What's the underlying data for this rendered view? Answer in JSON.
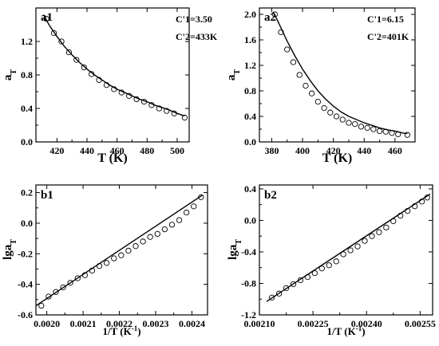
{
  "chart_data": [
    {
      "type": "scatter",
      "panel_label": "a1",
      "annotations": [
        "C'1=3.50",
        "C'2=433K"
      ],
      "xlabel": "T (K)",
      "ylabel": "aT",
      "ylabel_main": "a",
      "ylabel_sub": "T",
      "xlim": [
        406,
        508
      ],
      "ylim": [
        0.0,
        1.6
      ],
      "xticks": [
        420,
        440,
        460,
        480,
        500
      ],
      "yticks": [
        0.0,
        0.4,
        0.8,
        1.2
      ],
      "series": [
        {
          "kind": "points",
          "x": [
            413,
            418,
            423,
            428,
            433,
            438,
            443,
            448,
            453,
            458,
            463,
            468,
            473,
            478,
            483,
            488,
            493,
            498,
            505
          ],
          "y": [
            1.47,
            1.3,
            1.2,
            1.07,
            0.98,
            0.89,
            0.81,
            0.74,
            0.68,
            0.63,
            0.59,
            0.55,
            0.51,
            0.48,
            0.44,
            0.4,
            0.37,
            0.34,
            0.29
          ]
        },
        {
          "kind": "fit",
          "x": [
            411,
            415,
            420,
            425,
            430,
            435,
            440,
            445,
            450,
            455,
            460,
            465,
            470,
            475,
            480,
            485,
            490,
            495,
            500,
            505
          ],
          "y": [
            1.52,
            1.39,
            1.26,
            1.14,
            1.04,
            0.95,
            0.87,
            0.8,
            0.74,
            0.68,
            0.63,
            0.59,
            0.55,
            0.51,
            0.48,
            0.44,
            0.41,
            0.38,
            0.34,
            0.31
          ]
        }
      ]
    },
    {
      "type": "scatter",
      "panel_label": "a2",
      "annotations": [
        "C'1=6.15",
        "C'2=401K"
      ],
      "xlabel": "T (K)",
      "ylabel": "aT",
      "ylabel_main": "a",
      "ylabel_sub": "T",
      "xlim": [
        372,
        473
      ],
      "ylim": [
        0.0,
        2.1
      ],
      "xticks": [
        380,
        400,
        420,
        440,
        460
      ],
      "yticks": [
        0.0,
        0.4,
        0.8,
        1.2,
        1.6,
        2.0
      ],
      "series": [
        {
          "kind": "points",
          "x": [
            382,
            386,
            390,
            394,
            398,
            402,
            406,
            410,
            414,
            418,
            422,
            426,
            430,
            434,
            438,
            442,
            446,
            450,
            454,
            458,
            462,
            468
          ],
          "y": [
            2.0,
            1.72,
            1.45,
            1.25,
            1.05,
            0.88,
            0.76,
            0.63,
            0.53,
            0.46,
            0.4,
            0.35,
            0.3,
            0.28,
            0.24,
            0.22,
            0.2,
            0.17,
            0.16,
            0.14,
            0.12,
            0.11
          ]
        },
        {
          "kind": "fit",
          "x": [
            381,
            385,
            390,
            395,
            400,
            405,
            410,
            415,
            420,
            425,
            430,
            435,
            440,
            445,
            450,
            455,
            460,
            465,
            468
          ],
          "y": [
            2.04,
            1.84,
            1.58,
            1.35,
            1.14,
            0.96,
            0.8,
            0.67,
            0.56,
            0.47,
            0.4,
            0.35,
            0.3,
            0.26,
            0.22,
            0.19,
            0.17,
            0.14,
            0.13
          ]
        }
      ]
    },
    {
      "type": "scatter",
      "panel_label": "b1",
      "xlabel": "1/T (K-1)",
      "xlabel_main": "1/T (K",
      "xlabel_sup": "-1",
      "xlabel_end": ")",
      "ylabel": "lgaT",
      "ylabel_main": "lga",
      "ylabel_sub": "T",
      "xlim": [
        0.00197,
        0.002443
      ],
      "ylim": [
        -0.6,
        0.25
      ],
      "xticks": [
        0.002,
        0.0021,
        0.0022,
        0.0023,
        0.0024
      ],
      "xticklabels": [
        "0.0020",
        "0.0021",
        "0.0022",
        "0.0023",
        "0.0024"
      ],
      "yticks": [
        -0.6,
        -0.4,
        -0.2,
        0.0,
        0.2
      ],
      "yticklabels": [
        "-0.6",
        "-0.4",
        "-0.2",
        "0.0",
        "0.2"
      ],
      "series": [
        {
          "kind": "points",
          "x": [
            0.001985,
            0.002005,
            0.002025,
            0.002045,
            0.002065,
            0.002085,
            0.002105,
            0.002125,
            0.002145,
            0.002165,
            0.002185,
            0.002205,
            0.002225,
            0.002245,
            0.002265,
            0.002285,
            0.002305,
            0.002325,
            0.002345,
            0.002365,
            0.002385,
            0.002405,
            0.002425
          ],
          "y": [
            -0.54,
            -0.48,
            -0.45,
            -0.42,
            -0.39,
            -0.36,
            -0.34,
            -0.31,
            -0.28,
            -0.26,
            -0.23,
            -0.21,
            -0.18,
            -0.15,
            -0.12,
            -0.09,
            -0.07,
            -0.04,
            -0.01,
            0.02,
            0.07,
            0.11,
            0.17
          ]
        },
        {
          "kind": "fit",
          "x": [
            0.00197,
            0.00243
          ],
          "y": [
            -0.54,
            0.185
          ]
        }
      ]
    },
    {
      "type": "scatter",
      "panel_label": "b2",
      "xlabel": "1/T (K-1)",
      "xlabel_main": "1/T (K",
      "xlabel_sup": "-1",
      "xlabel_end": ")",
      "ylabel": "lgaT",
      "ylabel_main": "lga",
      "ylabel_sub": "T",
      "xlim": [
        0.0021,
        0.002585
      ],
      "ylim": [
        -1.2,
        0.45
      ],
      "xticks": [
        0.0021,
        0.00225,
        0.0024,
        0.00255
      ],
      "xticklabels": [
        "0.00210",
        "0.00225",
        "0.00240",
        "0.00255"
      ],
      "yticks": [
        -1.2,
        -0.8,
        -0.4,
        0.0,
        0.4
      ],
      "yticklabels": [
        "-1.2",
        "-0.8",
        "-0.4",
        "0.0",
        "0.4"
      ],
      "series": [
        {
          "kind": "points",
          "x": [
            0.002135,
            0.002155,
            0.002175,
            0.002195,
            0.002215,
            0.002235,
            0.002255,
            0.002275,
            0.002295,
            0.002315,
            0.002335,
            0.002355,
            0.002375,
            0.002395,
            0.002415,
            0.002435,
            0.002455,
            0.002475,
            0.002495,
            0.002515,
            0.002535,
            0.002555,
            0.00257
          ],
          "y": [
            -0.98,
            -0.93,
            -0.86,
            -0.81,
            -0.76,
            -0.72,
            -0.67,
            -0.61,
            -0.57,
            -0.52,
            -0.43,
            -0.38,
            -0.33,
            -0.26,
            -0.2,
            -0.15,
            -0.09,
            -0.01,
            0.06,
            0.12,
            0.18,
            0.24,
            0.29
          ]
        },
        {
          "kind": "fit",
          "x": [
            0.00212,
            0.002578
          ],
          "y": [
            -1.03,
            0.335
          ]
        }
      ]
    }
  ]
}
